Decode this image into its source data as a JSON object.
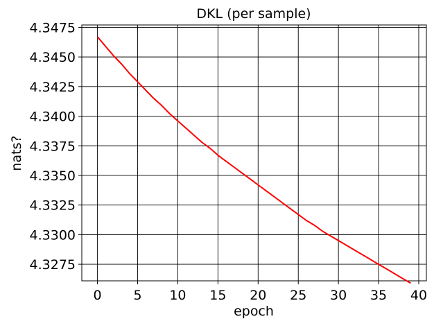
{
  "chart_data": {
    "type": "line",
    "title": "DKL (per sample)",
    "xlabel": "epoch",
    "ylabel": "nats?",
    "xlim": [
      -1.95,
      40.95
    ],
    "ylim": [
      4.3261,
      4.3477
    ],
    "xticks": [
      0,
      5,
      10,
      15,
      20,
      25,
      30,
      35,
      40
    ],
    "yticks": [
      4.3275,
      4.33,
      4.3325,
      4.335,
      4.3375,
      4.34,
      4.3425,
      4.345,
      4.3475
    ],
    "xtick_labels": [
      "0",
      "5",
      "10",
      "15",
      "20",
      "25",
      "30",
      "35",
      "40"
    ],
    "ytick_labels": [
      "4.3275",
      "4.3300",
      "4.3325",
      "4.3350",
      "4.3375",
      "4.3400",
      "4.3425",
      "4.3450",
      "4.3475"
    ],
    "grid": true,
    "series": [
      {
        "color": "#ff0000",
        "x": [
          0,
          1,
          2,
          3,
          4,
          5,
          6,
          7,
          8,
          9,
          10,
          11,
          12,
          13,
          14,
          15,
          16,
          17,
          18,
          19,
          20,
          21,
          22,
          23,
          24,
          25,
          26,
          27,
          28,
          29,
          30,
          31,
          32,
          33,
          34,
          35,
          36,
          37,
          38,
          39
        ],
        "y": [
          4.3467,
          4.3459,
          4.3451,
          4.3444,
          4.3436,
          4.3429,
          4.3422,
          4.3415,
          4.3409,
          4.3402,
          4.3396,
          4.339,
          4.3384,
          4.3378,
          4.3373,
          4.3367,
          4.3362,
          4.3357,
          4.3352,
          4.3347,
          4.3342,
          4.3337,
          4.3332,
          4.3327,
          4.3322,
          4.3317,
          4.3312,
          4.3308,
          4.3303,
          4.3299,
          4.3295,
          4.3291,
          4.3287,
          4.3283,
          4.3279,
          4.3275,
          4.3271,
          4.3267,
          4.3263,
          4.3259
        ]
      }
    ]
  }
}
